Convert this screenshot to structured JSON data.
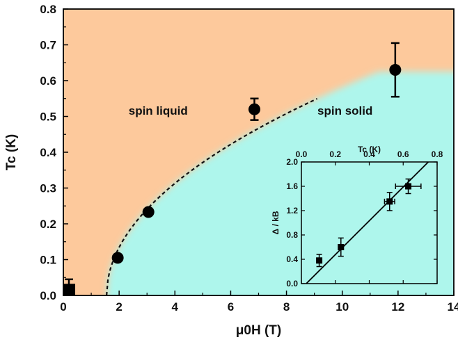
{
  "chart_data": [
    {
      "type": "scatter",
      "xlabel": "μ0H (T)",
      "ylabel": "Tc (K)",
      "xlim": [
        0,
        14
      ],
      "ylim": [
        0,
        0.8
      ],
      "x_ticks": [
        "0",
        "2",
        "4",
        "6",
        "8",
        "10",
        "12",
        "14"
      ],
      "y_ticks": [
        "0.0",
        "0.1",
        "0.2",
        "0.3",
        "0.4",
        "0.5",
        "0.6",
        "0.7",
        "0.8"
      ],
      "region_labels": [
        "spin liquid",
        "spin solid"
      ],
      "colors": {
        "spin_liquid": "#fdc99c",
        "spin_solid": "#aef6ec",
        "marker": "#000000"
      },
      "series": [
        {
          "points": [
            {
              "x": 0.2,
              "y": 0.015,
              "yerr": 0.03,
              "marker": "square"
            },
            {
              "x": 1.95,
              "y": 0.105,
              "yerr": 0.0
            },
            {
              "x": 3.05,
              "y": 0.233,
              "yerr": 0.0
            },
            {
              "x": 6.85,
              "y": 0.52,
              "yerr": 0.03
            },
            {
              "x": 11.9,
              "y": 0.63,
              "yerr": 0.075
            }
          ]
        }
      ],
      "fit_curve": {
        "style": "dashed",
        "x_range": [
          1.55,
          9.1
        ]
      },
      "boundary": {
        "high_field_plateau_y": 0.625
      }
    },
    {
      "type": "scatter",
      "inset": true,
      "xlabel": "Tc (K)",
      "ylabel": "Δ / kB",
      "xlim": [
        0,
        0.8
      ],
      "ylim": [
        0,
        2.0
      ],
      "x_ticks": [
        "0.0",
        "0.2",
        "0.4",
        "0.6",
        "0.8"
      ],
      "y_ticks": [
        "0.0",
        "0.4",
        "0.8",
        "1.2",
        "1.6",
        "2.0"
      ],
      "x_axis_position": "top",
      "series": [
        {
          "points": [
            {
              "x": 0.105,
              "y": 0.38,
              "yerr": 0.1
            },
            {
              "x": 0.233,
              "y": 0.6,
              "yerr": 0.15
            },
            {
              "x": 0.52,
              "y": 1.35,
              "yerr": 0.15,
              "xerr": 0.03
            },
            {
              "x": 0.63,
              "y": 1.6,
              "yerr": 0.12,
              "xerr": 0.075
            }
          ]
        }
      ],
      "fit_line": {
        "slope": 2.78,
        "intercept": -0.08
      }
    }
  ]
}
